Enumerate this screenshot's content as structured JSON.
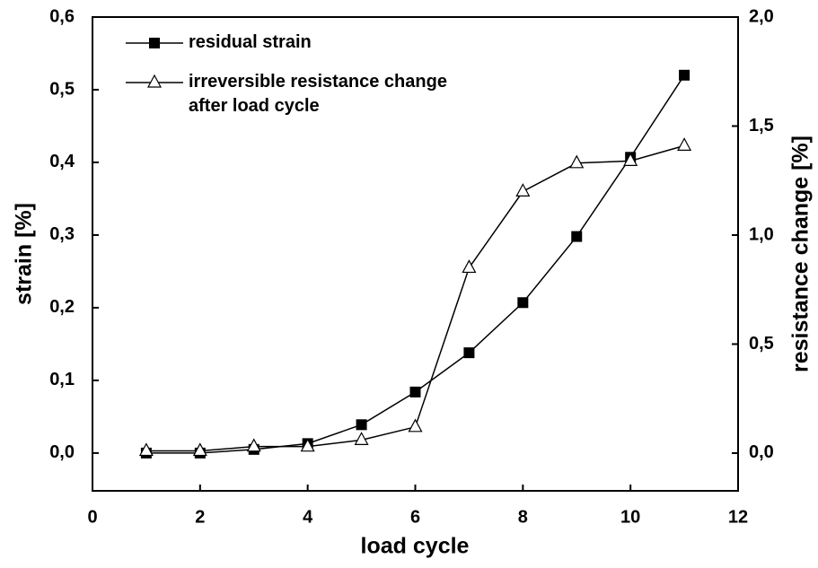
{
  "chart_data": {
    "type": "line",
    "x_label": "load cycle",
    "y_label": "strain [%]",
    "y2_label": "resistance change [%]",
    "x": [
      1,
      2,
      3,
      4,
      5,
      6,
      7,
      8,
      9,
      10,
      11
    ],
    "series": [
      {
        "name": "residual strain",
        "color": "#000000",
        "marker": "square",
        "values": [
          0.0,
          0.0,
          0.005,
          0.013,
          0.039,
          0.084,
          0.138,
          0.207,
          0.298,
          0.407,
          0.52
        ]
      },
      {
        "name": "irreversible resistance change after load cycle",
        "color": "#000000",
        "marker": "triangle",
        "axis": "y2",
        "values": [
          0.01,
          0.01,
          0.03,
          0.03,
          0.06,
          0.12,
          0.85,
          1.2,
          1.33,
          1.34,
          1.41
        ]
      }
    ],
    "xlim": [
      0,
      12
    ],
    "xticks": [
      0,
      2,
      4,
      6,
      8,
      10,
      12
    ],
    "ylim": [
      -0.052,
      0.6
    ],
    "yticks": [
      {
        "value": 0,
        "label": "0,0"
      },
      {
        "value": 0.1,
        "label": "0,1"
      },
      {
        "value": 0.2,
        "label": "0,2"
      },
      {
        "value": 0.3,
        "label": "0,3"
      },
      {
        "value": 0.4,
        "label": "0,4"
      },
      {
        "value": 0.5,
        "label": "0,5"
      },
      {
        "value": 0.6,
        "label": "0,6"
      }
    ],
    "y2lim": [
      -0.173,
      2.0
    ],
    "y2ticks": [
      {
        "value": 0,
        "label": "0,0"
      },
      {
        "value": 0.5,
        "label": "0,5"
      },
      {
        "value": 1.0,
        "label": "1,0"
      },
      {
        "value": 1.5,
        "label": "1,5"
      },
      {
        "value": 2.0,
        "label": "2,0"
      }
    ],
    "legend": "upper left",
    "grid": false
  }
}
